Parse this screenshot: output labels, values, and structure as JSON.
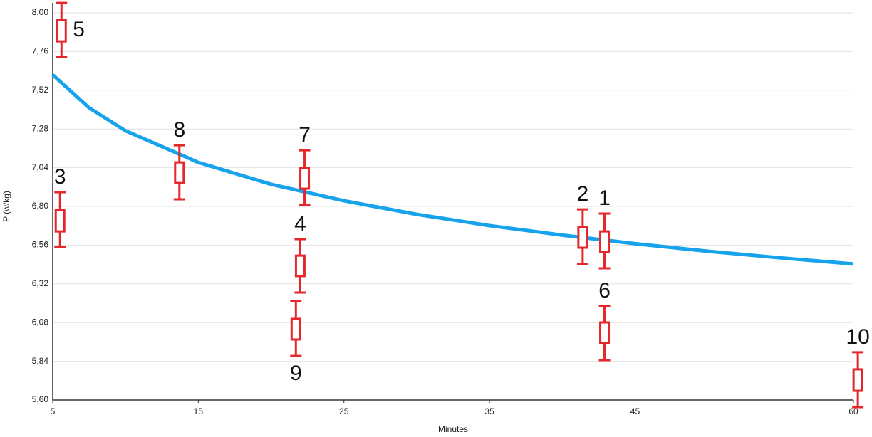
{
  "chart_data": {
    "type": "box-scatter",
    "x_label": "Minutes",
    "y_label": "P (w/kg)",
    "xlim": [
      5,
      60
    ],
    "xticks": [
      5,
      15,
      25,
      35,
      45,
      60
    ],
    "ylim": [
      5.6,
      8.0
    ],
    "yticks": [
      {
        "value": 5.6,
        "label": "5,60"
      },
      {
        "value": 5.84,
        "label": "5,84"
      },
      {
        "value": 6.08,
        "label": "6,08"
      },
      {
        "value": 6.32,
        "label": "6,32"
      },
      {
        "value": 6.56,
        "label": "6,56"
      },
      {
        "value": 6.8,
        "label": "6,80"
      },
      {
        "value": 7.04,
        "label": "7,04"
      },
      {
        "value": 7.28,
        "label": "7,28"
      },
      {
        "value": 7.52,
        "label": "7,52"
      },
      {
        "value": 7.76,
        "label": "7,76"
      },
      {
        "value": 8.0,
        "label": "8,00"
      }
    ],
    "grid": true,
    "curve": {
      "color": "#16a3ec",
      "x": [
        5,
        7.5,
        10,
        15,
        20,
        25,
        30,
        35,
        40,
        45,
        50,
        55,
        60
      ],
      "y": [
        7.616,
        7.411,
        7.269,
        7.073,
        6.937,
        6.835,
        6.751,
        6.681,
        6.622,
        6.569,
        6.522,
        6.481,
        6.443
      ]
    },
    "box_color": "#e5262a",
    "points": [
      {
        "label": "5",
        "x": 5.6,
        "whisker_low": 7.726,
        "box_low": 7.823,
        "box_high": 7.956,
        "whisker_high": 8.061,
        "label_position": "right"
      },
      {
        "label": "3",
        "x": 5.5,
        "whisker_low": 6.548,
        "box_low": 6.645,
        "box_high": 6.778,
        "whisker_high": 6.888,
        "label_position": "above"
      },
      {
        "label": "8",
        "x": 13.7,
        "whisker_low": 6.844,
        "box_low": 6.945,
        "box_high": 7.073,
        "whisker_high": 7.179,
        "label_position": "above"
      },
      {
        "label": "7",
        "x": 22.3,
        "whisker_low": 6.809,
        "box_low": 6.91,
        "box_high": 7.038,
        "whisker_high": 7.148,
        "label_position": "above"
      },
      {
        "label": "4",
        "x": 22.0,
        "whisker_low": 6.266,
        "box_low": 6.368,
        "box_high": 6.495,
        "whisker_high": 6.597,
        "label_position": "above"
      },
      {
        "label": "9",
        "x": 21.7,
        "whisker_low": 5.873,
        "box_low": 5.975,
        "box_high": 6.103,
        "whisker_high": 6.213,
        "label_position": "below"
      },
      {
        "label": "2",
        "x": 41.4,
        "whisker_low": 6.443,
        "box_low": 6.544,
        "box_high": 6.672,
        "whisker_high": 6.782,
        "label_position": "above"
      },
      {
        "label": "1",
        "x": 42.9,
        "whisker_low": 6.416,
        "box_low": 6.518,
        "box_high": 6.645,
        "whisker_high": 6.756,
        "label_position": "above"
      },
      {
        "label": "6",
        "x": 42.9,
        "whisker_low": 5.847,
        "box_low": 5.953,
        "box_high": 6.081,
        "whisker_high": 6.182,
        "label_position": "above"
      },
      {
        "label": "10",
        "x": 60.3,
        "whisker_low": 5.556,
        "box_low": 5.657,
        "box_high": 5.79,
        "whisker_high": 5.896,
        "label_position": "above"
      }
    ]
  }
}
